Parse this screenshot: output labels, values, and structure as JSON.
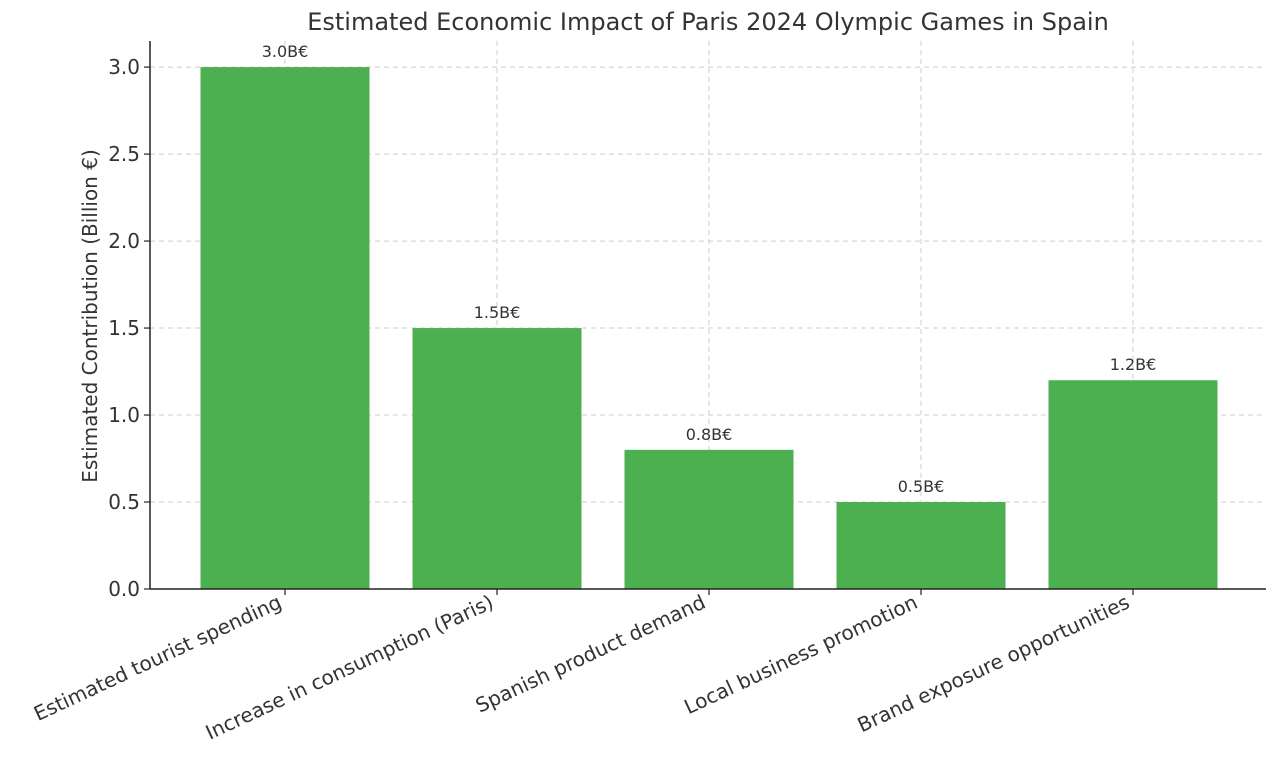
{
  "chart_data": {
    "type": "bar",
    "title": "Estimated Economic Impact of Paris 2024 Olympic Games in Spain",
    "xlabel": "",
    "ylabel": "Estimated Contribution (Billion €)",
    "categories": [
      "Estimated tourist spending",
      "Increase in consumption (Paris)",
      "Spanish product demand",
      "Local business promotion",
      "Brand exposure opportunities"
    ],
    "values": [
      3.0,
      1.5,
      0.8,
      0.5,
      1.2
    ],
    "data_labels": [
      "3.0B€",
      "1.5B€",
      "0.8B€",
      "0.5B€",
      "1.2B€"
    ],
    "yticks": [
      "0.0",
      "0.5",
      "1.0",
      "1.5",
      "2.0",
      "2.5",
      "3.0"
    ],
    "ylim": [
      0,
      3.15
    ],
    "grid": true,
    "bar_color": "#4caf50"
  }
}
